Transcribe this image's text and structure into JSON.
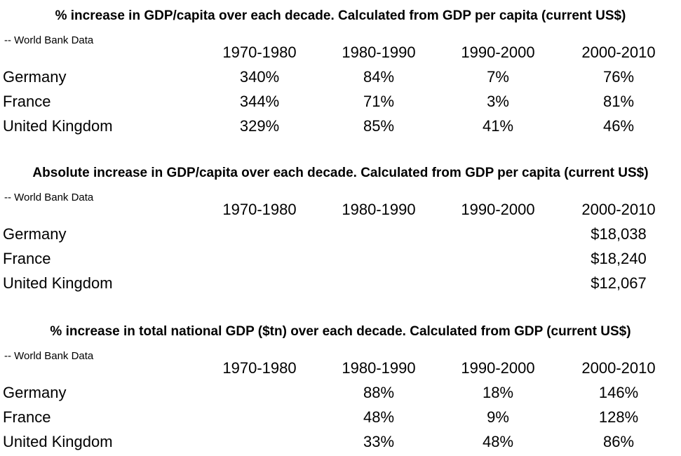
{
  "headers": [
    "1970-1980",
    "1980-1990",
    "1990-2000",
    "2000-2010"
  ],
  "source": "-- World Bank Data",
  "tables": [
    {
      "title": "% increase in GDP/capita over each decade. Calculated from GDP per capita (current US$)",
      "rows": [
        {
          "country": "Germany",
          "values": [
            "340%",
            "84%",
            "7%",
            "76%"
          ]
        },
        {
          "country": "France",
          "values": [
            "344%",
            "71%",
            "3%",
            "81%"
          ]
        },
        {
          "country": "United Kingdom",
          "values": [
            "329%",
            "85%",
            "41%",
            "46%"
          ]
        }
      ]
    },
    {
      "title": "Absolute increase in GDP/capita over each decade. Calculated from GDP per capita (current US$)",
      "rows": [
        {
          "country": "Germany",
          "values": [
            "",
            "",
            "",
            "$18,038"
          ]
        },
        {
          "country": "France",
          "values": [
            "",
            "",
            "",
            "$18,240"
          ]
        },
        {
          "country": "United Kingdom",
          "values": [
            "",
            "",
            "",
            "$12,067"
          ]
        }
      ]
    },
    {
      "title": "% increase in total national GDP ($tn) over each decade. Calculated from GDP (current US$)",
      "rows": [
        {
          "country": "Germany",
          "values": [
            "",
            "88%",
            "18%",
            "146%"
          ]
        },
        {
          "country": "France",
          "values": [
            "",
            "48%",
            "9%",
            "128%"
          ]
        },
        {
          "country": "United Kingdom",
          "values": [
            "",
            "33%",
            "48%",
            "86%"
          ]
        }
      ]
    }
  ]
}
